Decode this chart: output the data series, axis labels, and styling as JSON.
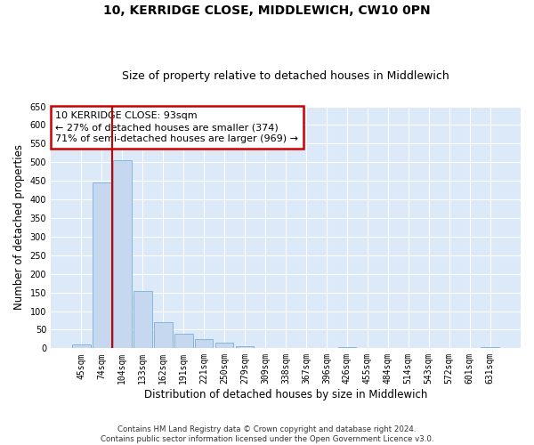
{
  "title": "10, KERRIDGE CLOSE, MIDDLEWICH, CW10 0PN",
  "subtitle": "Size of property relative to detached houses in Middlewich",
  "xlabel": "Distribution of detached houses by size in Middlewich",
  "ylabel": "Number of detached properties",
  "categories": [
    "45sqm",
    "74sqm",
    "104sqm",
    "133sqm",
    "162sqm",
    "191sqm",
    "221sqm",
    "250sqm",
    "279sqm",
    "309sqm",
    "338sqm",
    "367sqm",
    "396sqm",
    "426sqm",
    "455sqm",
    "484sqm",
    "514sqm",
    "543sqm",
    "572sqm",
    "601sqm",
    "631sqm"
  ],
  "values": [
    10,
    445,
    505,
    155,
    70,
    40,
    25,
    15,
    5,
    0,
    0,
    0,
    0,
    2,
    0,
    0,
    0,
    0,
    0,
    0,
    2
  ],
  "bar_color": "#c5d8f0",
  "bar_edge_color": "#7bafd4",
  "vline_color": "#cc0000",
  "vline_x_index": 1.5,
  "annotation_text": "10 KERRIDGE CLOSE: 93sqm\n← 27% of detached houses are smaller (374)\n71% of semi-detached houses are larger (969) →",
  "annotation_box_facecolor": "#ffffff",
  "annotation_box_edgecolor": "#cc0000",
  "ylim": [
    0,
    650
  ],
  "yticks": [
    0,
    50,
    100,
    150,
    200,
    250,
    300,
    350,
    400,
    450,
    500,
    550,
    600,
    650
  ],
  "plot_bg_color": "#dce9f8",
  "grid_color": "#ffffff",
  "title_fontsize": 10,
  "subtitle_fontsize": 9,
  "xlabel_fontsize": 8.5,
  "ylabel_fontsize": 8.5,
  "tick_fontsize": 7,
  "annotation_fontsize": 8,
  "footer_line1": "Contains HM Land Registry data © Crown copyright and database right 2024.",
  "footer_line2": "Contains public sector information licensed under the Open Government Licence v3.0."
}
